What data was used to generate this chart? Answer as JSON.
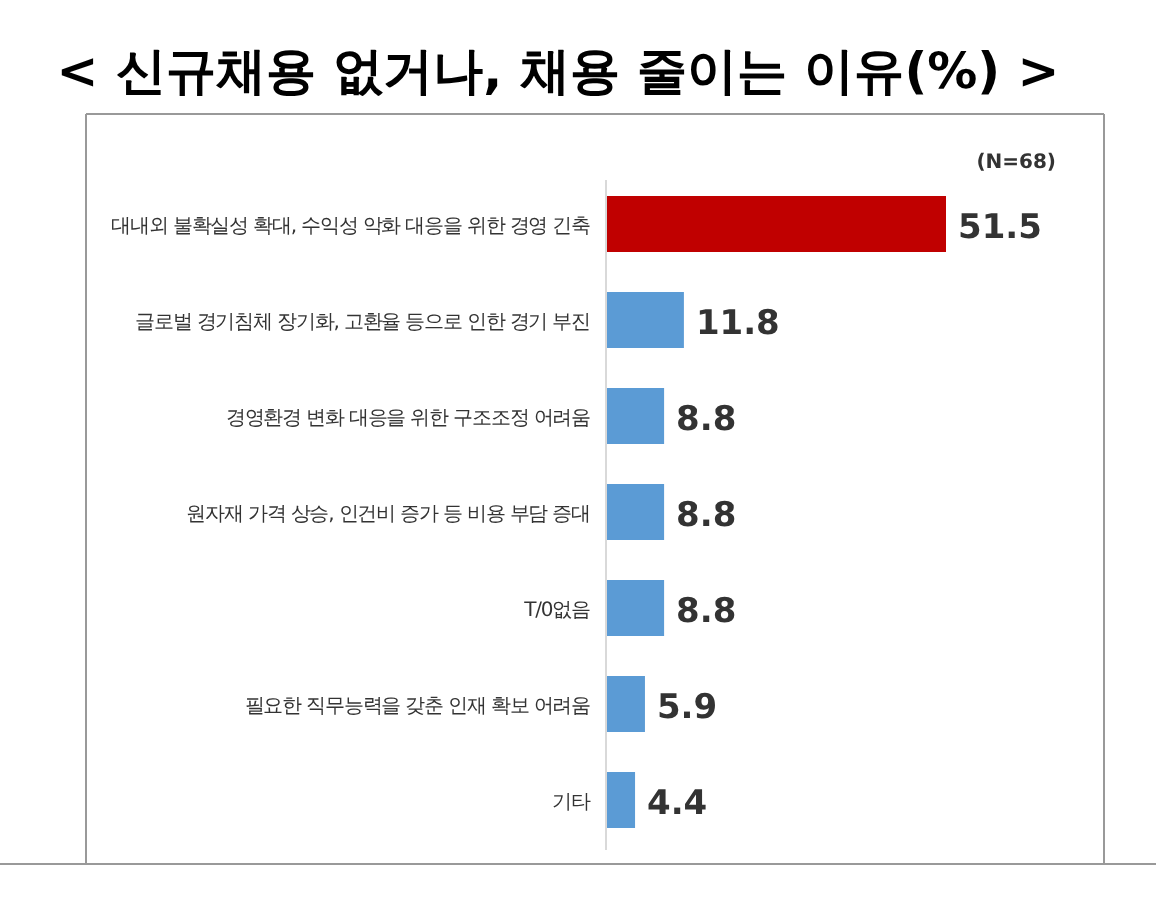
{
  "chart_data": {
    "type": "bar",
    "orientation": "horizontal",
    "title": "< 신규채용 없거나, 채용 줄이는 이유(%) >",
    "annotations": [
      "(N=68)"
    ],
    "categories": [
      "대내외 불확실성 확대, 수익성 악화 대응을 위한 경영 긴축",
      "글로벌 경기침체 장기화, 고환율 등으로 인한 경기 부진",
      "경영환경 변화 대응을 위한 구조조정 어려움",
      "원자재 가격 상승, 인건비 증가 등 비용 부담 증대",
      "T/0없음",
      "필요한 직무능력을 갖춘 인재 확보 어려움",
      "기타"
    ],
    "values": [
      51.5,
      11.8,
      8.8,
      8.8,
      8.8,
      5.9,
      4.4
    ],
    "colors": [
      "#c00000",
      "#5b9bd5",
      "#5b9bd5",
      "#5b9bd5",
      "#5b9bd5",
      "#5b9bd5",
      "#5b9bd5"
    ],
    "data_labels": true
  }
}
